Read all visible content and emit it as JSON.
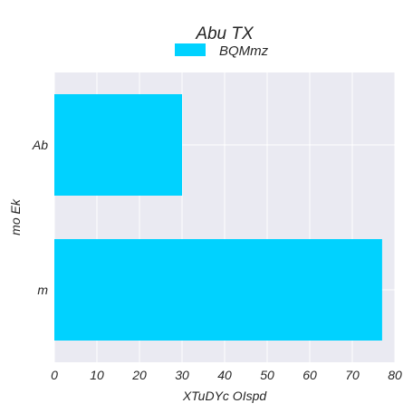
{
  "chart_data": {
    "type": "bar",
    "orientation": "horizontal",
    "title": "Abu TX",
    "xlabel": "XTuDYc OIspd",
    "ylabel": "mo Ek",
    "categories": [
      "Ab",
      "m"
    ],
    "series": [
      {
        "name": "BQMmz",
        "values": [
          30,
          77
        ],
        "color": "#00d2ff"
      }
    ],
    "xlim": [
      0,
      80
    ],
    "xticks": [
      "0",
      "10",
      "20",
      "30",
      "40",
      "50",
      "60",
      "70",
      "80"
    ],
    "grid": true,
    "legend_position": "top-center",
    "background_color": "#eaeaf2",
    "grid_color": "#ffffff"
  }
}
